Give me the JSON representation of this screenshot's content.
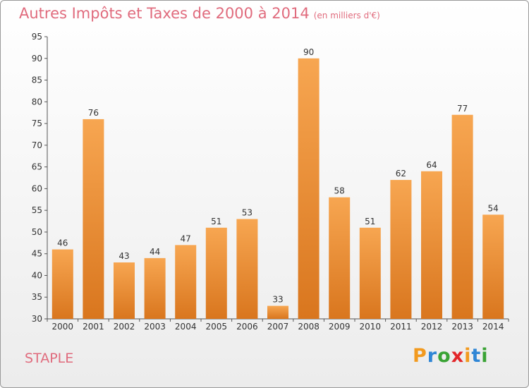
{
  "header": {
    "title": "Autres Impôts et Taxes de 2000 à 2014",
    "subtitle": "(en milliers d'€)"
  },
  "footer": {
    "place": "STAPLE",
    "logo_letters": [
      "P",
      "r",
      "o",
      "x",
      "i",
      "t",
      "i"
    ],
    "logo_colors": [
      "#f29a1f",
      "#2f86d6",
      "#3aa335",
      "#e2262a",
      "#f29a1f",
      "#2f86d6",
      "#3aa335"
    ]
  },
  "colors": {
    "bar": "#f0922f",
    "title": "#e06b7d"
  },
  "chart_data": {
    "type": "bar",
    "categories": [
      "2000",
      "2001",
      "2002",
      "2003",
      "2004",
      "2005",
      "2006",
      "2007",
      "2008",
      "2009",
      "2010",
      "2011",
      "2012",
      "2013",
      "2014"
    ],
    "values": [
      46,
      76,
      43,
      44,
      47,
      51,
      53,
      33,
      90,
      58,
      51,
      62,
      64,
      77,
      54
    ],
    "ylim": [
      30,
      95
    ],
    "yticks": [
      30,
      35,
      40,
      45,
      50,
      55,
      60,
      65,
      70,
      75,
      80,
      85,
      90,
      95
    ],
    "grid": false
  }
}
